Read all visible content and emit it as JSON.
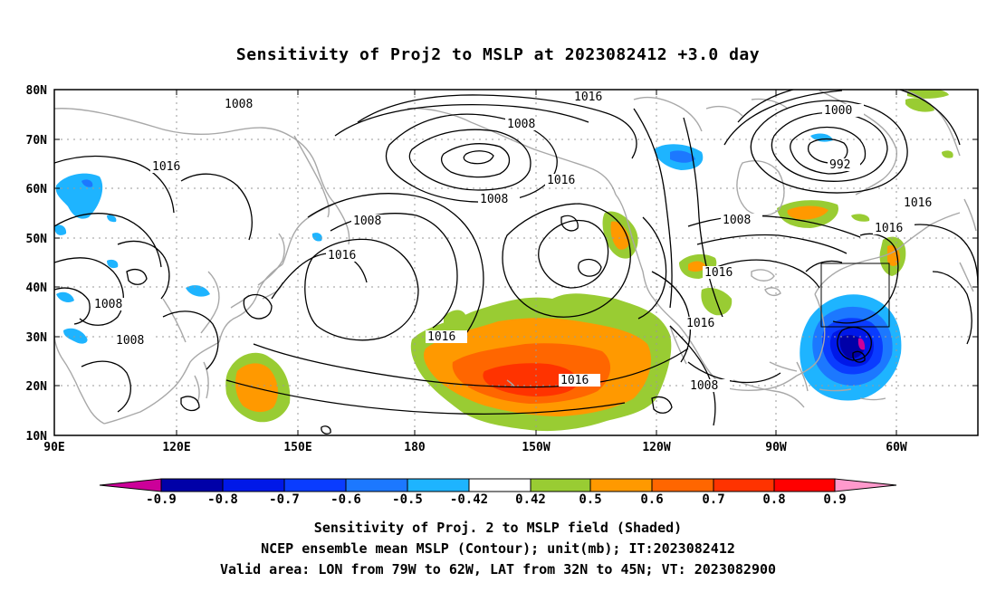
{
  "title": "Sensitivity of Proj2 to MSLP at 2023082412 +3.0 day",
  "lat_labels": [
    "80N",
    "70N",
    "60N",
    "50N",
    "40N",
    "30N",
    "20N",
    "10N"
  ],
  "lon_labels": [
    "90E",
    "120E",
    "150E",
    "180",
    "150W",
    "120W",
    "90W",
    "60W"
  ],
  "contour_labels": [
    "1016",
    "1008",
    "1008",
    "1016",
    "1008",
    "1016",
    "1016",
    "1000",
    "992",
    "1016",
    "1008",
    "1016",
    "1016",
    "1016",
    "1008",
    "1008",
    "1016",
    "1016",
    "1008"
  ],
  "colorbar": {
    "labels": [
      "-0.9",
      "-0.8",
      "-0.7",
      "-0.6",
      "-0.5",
      "-0.42",
      "0.42",
      "0.5",
      "0.6",
      "0.7",
      "0.8",
      "0.9"
    ],
    "colors": [
      "#0000a8",
      "#0018e8",
      "#0a3cff",
      "#1c78ff",
      "#1eb4ff",
      "#00d0ff",
      "#ffffff",
      "#99cc33",
      "#ff9900",
      "#ff6600",
      "#ff3300",
      "#ff0000"
    ],
    "end_colors": [
      "#cc0099",
      "#ff99cc"
    ]
  },
  "captions": [
    "Sensitivity of Proj. 2 to MSLP field (Shaded)",
    "NCEP ensemble mean MSLP (Contour); unit(mb); IT:2023082412",
    "Valid area: LON from 79W to 62W, LAT from 32N to 45N; VT: 2023082900"
  ],
  "map_extent": {
    "lon_min": "90E",
    "lon_max": "40W",
    "lat_min": "10N",
    "lat_max": "80N"
  },
  "valid_box": {
    "lon": [
      "79W",
      "62W"
    ],
    "lat": [
      "32N",
      "45N"
    ]
  }
}
